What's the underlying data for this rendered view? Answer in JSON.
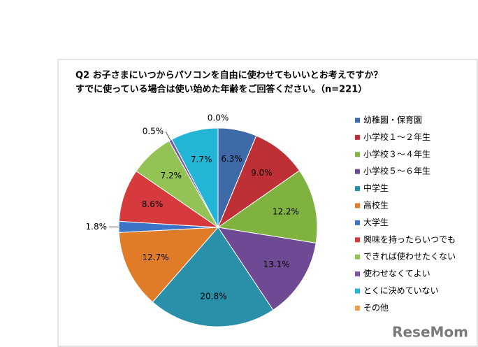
{
  "chart_data": {
    "type": "pie",
    "title": [
      "Q2 お子さまにいつからパソコンを自由に使わせてもいいとお考えですか？",
      "すでに使っている場合は使い始めた年齢をご回答ください。（n=221）"
    ],
    "categories": [
      "幼稚園・保育園",
      "小学校１～２年生",
      "小学校３～４年生",
      "小学校５～６年生",
      "中学生",
      "高校生",
      "大学生",
      "興味を持ったらいつでも",
      "できれば使わせたくない",
      "使わせなくてよい",
      "とくに決めていない",
      "その他"
    ],
    "values": [
      6.3,
      9.0,
      12.2,
      13.1,
      20.8,
      12.7,
      1.8,
      8.6,
      7.2,
      0.5,
      7.7,
      0.0
    ],
    "value_labels": [
      "6.3%",
      "9.0%",
      "12.2%",
      "13.1%",
      "20.8%",
      "12.7%",
      "1.8%",
      "8.6%",
      "7.2%",
      "0.5%",
      "7.7%",
      "0.0%"
    ],
    "colors": [
      "#3e6aa8",
      "#bf2f36",
      "#7fb23f",
      "#6f4a94",
      "#2a8fa9",
      "#e07c28",
      "#3d75c6",
      "#d63a3d",
      "#93c354",
      "#7d55a8",
      "#22b5d5",
      "#f09a4a"
    ],
    "legend": "right"
  },
  "watermark": "ReseMom"
}
